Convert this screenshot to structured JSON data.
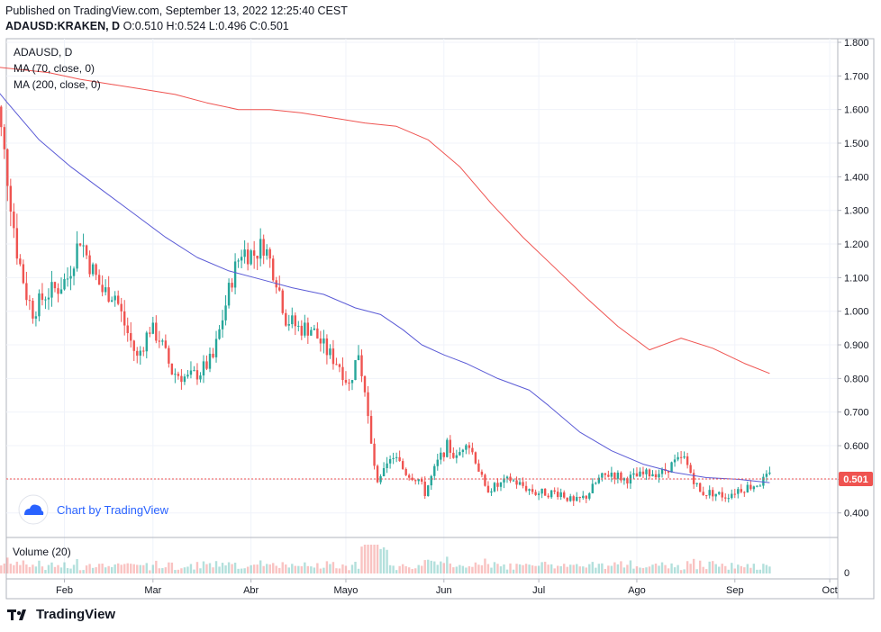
{
  "header": {
    "published": "Published on TradingView.com, September 13, 2022 12:25:40 CEST",
    "symbol": "ADAUSD:KRAKEN, D",
    "ohlc": "O:0.510 H:0.524 L:0.496 C:0.501"
  },
  "legend": {
    "title": "ADAUSD, D",
    "ma70": "MA (70, close, 0)",
    "ma200": "MA (200, close, 0)"
  },
  "watermark": "Chart by TradingView",
  "footer_brand": "TradingView",
  "colors": {
    "up": "#26a69a",
    "down": "#ef5350",
    "ma70": "#5b5bd6",
    "ma200": "#ef5350",
    "last_price": "#ef5350",
    "watermark": "#2962ff"
  },
  "chart_data": {
    "type": "candlestick",
    "title": "ADAUSD, D",
    "last_price": "0.501",
    "y_axis": {
      "ylim": [
        0.32,
        1.8
      ],
      "ticks": [
        "0.400",
        "0.500",
        "0.600",
        "0.700",
        "0.800",
        "0.900",
        "1.000",
        "1.100",
        "1.200",
        "1.300",
        "1.400",
        "1.500",
        "1.600",
        "1.700",
        "1.800"
      ]
    },
    "x_axis": {
      "labels": [
        "Feb",
        "Mar",
        "Abr",
        "Mayo",
        "Jun",
        "Jul",
        "Ago",
        "Sep",
        "Oct"
      ]
    },
    "volume_pane": {
      "label": "Volume (20)",
      "tick": "0"
    },
    "price_path": [
      [
        "2022-01-09",
        1.25
      ],
      [
        "2022-01-11",
        1.6
      ],
      [
        "2022-01-14",
        1.4
      ],
      [
        "2022-01-17",
        1.18
      ],
      [
        "2022-01-20",
        1.05
      ],
      [
        "2022-01-22",
        1.0
      ],
      [
        "2022-01-26",
        1.05
      ],
      [
        "2022-01-30",
        1.07
      ],
      [
        "2022-02-02",
        1.1
      ],
      [
        "2022-02-06",
        1.22
      ],
      [
        "2022-02-09",
        1.14
      ],
      [
        "2022-02-13",
        1.06
      ],
      [
        "2022-02-17",
        1.05
      ],
      [
        "2022-02-20",
        0.96
      ],
      [
        "2022-02-24",
        0.86
      ],
      [
        "2022-02-28",
        0.95
      ],
      [
        "2022-03-03",
        0.92
      ],
      [
        "2022-03-07",
        0.82
      ],
      [
        "2022-03-12",
        0.8
      ],
      [
        "2022-03-16",
        0.82
      ],
      [
        "2022-03-20",
        0.86
      ],
      [
        "2022-03-23",
        0.98
      ],
      [
        "2022-03-26",
        1.1
      ],
      [
        "2022-03-29",
        1.18
      ],
      [
        "2022-04-02",
        1.17
      ],
      [
        "2022-04-05",
        1.2
      ],
      [
        "2022-04-09",
        1.1
      ],
      [
        "2022-04-12",
        0.98
      ],
      [
        "2022-04-16",
        0.95
      ],
      [
        "2022-04-20",
        0.95
      ],
      [
        "2022-04-25",
        0.88
      ],
      [
        "2022-04-29",
        0.84
      ],
      [
        "2022-05-02",
        0.78
      ],
      [
        "2022-05-05",
        0.88
      ],
      [
        "2022-05-07",
        0.76
      ],
      [
        "2022-05-09",
        0.6
      ],
      [
        "2022-05-11",
        0.48
      ],
      [
        "2022-05-13",
        0.52
      ],
      [
        "2022-05-16",
        0.57
      ],
      [
        "2022-05-20",
        0.52
      ],
      [
        "2022-05-24",
        0.5
      ],
      [
        "2022-05-26",
        0.46
      ],
      [
        "2022-05-30",
        0.55
      ],
      [
        "2022-06-02",
        0.6
      ],
      [
        "2022-06-05",
        0.56
      ],
      [
        "2022-06-08",
        0.62
      ],
      [
        "2022-06-11",
        0.56
      ],
      [
        "2022-06-14",
        0.47
      ],
      [
        "2022-06-18",
        0.48
      ],
      [
        "2022-06-22",
        0.5
      ],
      [
        "2022-06-26",
        0.48
      ],
      [
        "2022-06-30",
        0.46
      ],
      [
        "2022-07-04",
        0.46
      ],
      [
        "2022-07-08",
        0.46
      ],
      [
        "2022-07-12",
        0.43
      ],
      [
        "2022-07-16",
        0.45
      ],
      [
        "2022-07-20",
        0.5
      ],
      [
        "2022-07-24",
        0.52
      ],
      [
        "2022-07-28",
        0.5
      ],
      [
        "2022-08-02",
        0.51
      ],
      [
        "2022-08-06",
        0.52
      ],
      [
        "2022-08-09",
        0.52
      ],
      [
        "2022-08-13",
        0.55
      ],
      [
        "2022-08-16",
        0.56
      ],
      [
        "2022-08-19",
        0.5
      ],
      [
        "2022-08-21",
        0.46
      ],
      [
        "2022-08-25",
        0.46
      ],
      [
        "2022-08-29",
        0.45
      ],
      [
        "2022-09-02",
        0.47
      ],
      [
        "2022-09-06",
        0.48
      ],
      [
        "2022-09-09",
        0.49
      ],
      [
        "2022-09-12",
        0.51
      ]
    ],
    "series": [
      {
        "name": "MA (70, close, 0)",
        "points": [
          [
            "2022-01-07",
            1.7
          ],
          [
            "2022-01-14",
            1.62
          ],
          [
            "2022-01-24",
            1.51
          ],
          [
            "2022-02-03",
            1.43
          ],
          [
            "2022-02-13",
            1.36
          ],
          [
            "2022-02-23",
            1.29
          ],
          [
            "2022-03-05",
            1.22
          ],
          [
            "2022-03-15",
            1.16
          ],
          [
            "2022-03-25",
            1.12
          ],
          [
            "2022-04-04",
            1.095
          ],
          [
            "2022-04-14",
            1.07
          ],
          [
            "2022-04-24",
            1.05
          ],
          [
            "2022-05-04",
            1.01
          ],
          [
            "2022-05-12",
            0.99
          ],
          [
            "2022-05-19",
            0.945
          ],
          [
            "2022-05-25",
            0.9
          ],
          [
            "2022-06-01",
            0.87
          ],
          [
            "2022-06-08",
            0.845
          ],
          [
            "2022-06-18",
            0.8
          ],
          [
            "2022-06-28",
            0.765
          ],
          [
            "2022-07-04",
            0.72
          ],
          [
            "2022-07-14",
            0.64
          ],
          [
            "2022-07-24",
            0.585
          ],
          [
            "2022-08-03",
            0.545
          ],
          [
            "2022-08-13",
            0.52
          ],
          [
            "2022-08-23",
            0.505
          ],
          [
            "2022-09-02",
            0.5
          ],
          [
            "2022-09-12",
            0.49
          ]
        ]
      },
      {
        "name": "MA (200, close, 0)",
        "points": [
          [
            "2022-01-07",
            1.73
          ],
          [
            "2022-01-17",
            1.72
          ],
          [
            "2022-01-27",
            1.71
          ],
          [
            "2022-02-06",
            1.69
          ],
          [
            "2022-02-16",
            1.675
          ],
          [
            "2022-02-26",
            1.66
          ],
          [
            "2022-03-08",
            1.645
          ],
          [
            "2022-03-18",
            1.62
          ],
          [
            "2022-03-28",
            1.6
          ],
          [
            "2022-04-07",
            1.6
          ],
          [
            "2022-04-17",
            1.59
          ],
          [
            "2022-04-27",
            1.575
          ],
          [
            "2022-05-07",
            1.56
          ],
          [
            "2022-05-17",
            1.55
          ],
          [
            "2022-05-27",
            1.51
          ],
          [
            "2022-06-06",
            1.43
          ],
          [
            "2022-06-16",
            1.32
          ],
          [
            "2022-06-26",
            1.22
          ],
          [
            "2022-07-06",
            1.13
          ],
          [
            "2022-07-16",
            1.04
          ],
          [
            "2022-07-26",
            0.955
          ],
          [
            "2022-08-05",
            0.885
          ],
          [
            "2022-08-15",
            0.92
          ],
          [
            "2022-08-25",
            0.89
          ],
          [
            "2022-09-04",
            0.845
          ],
          [
            "2022-09-12",
            0.815
          ]
        ]
      }
    ]
  }
}
